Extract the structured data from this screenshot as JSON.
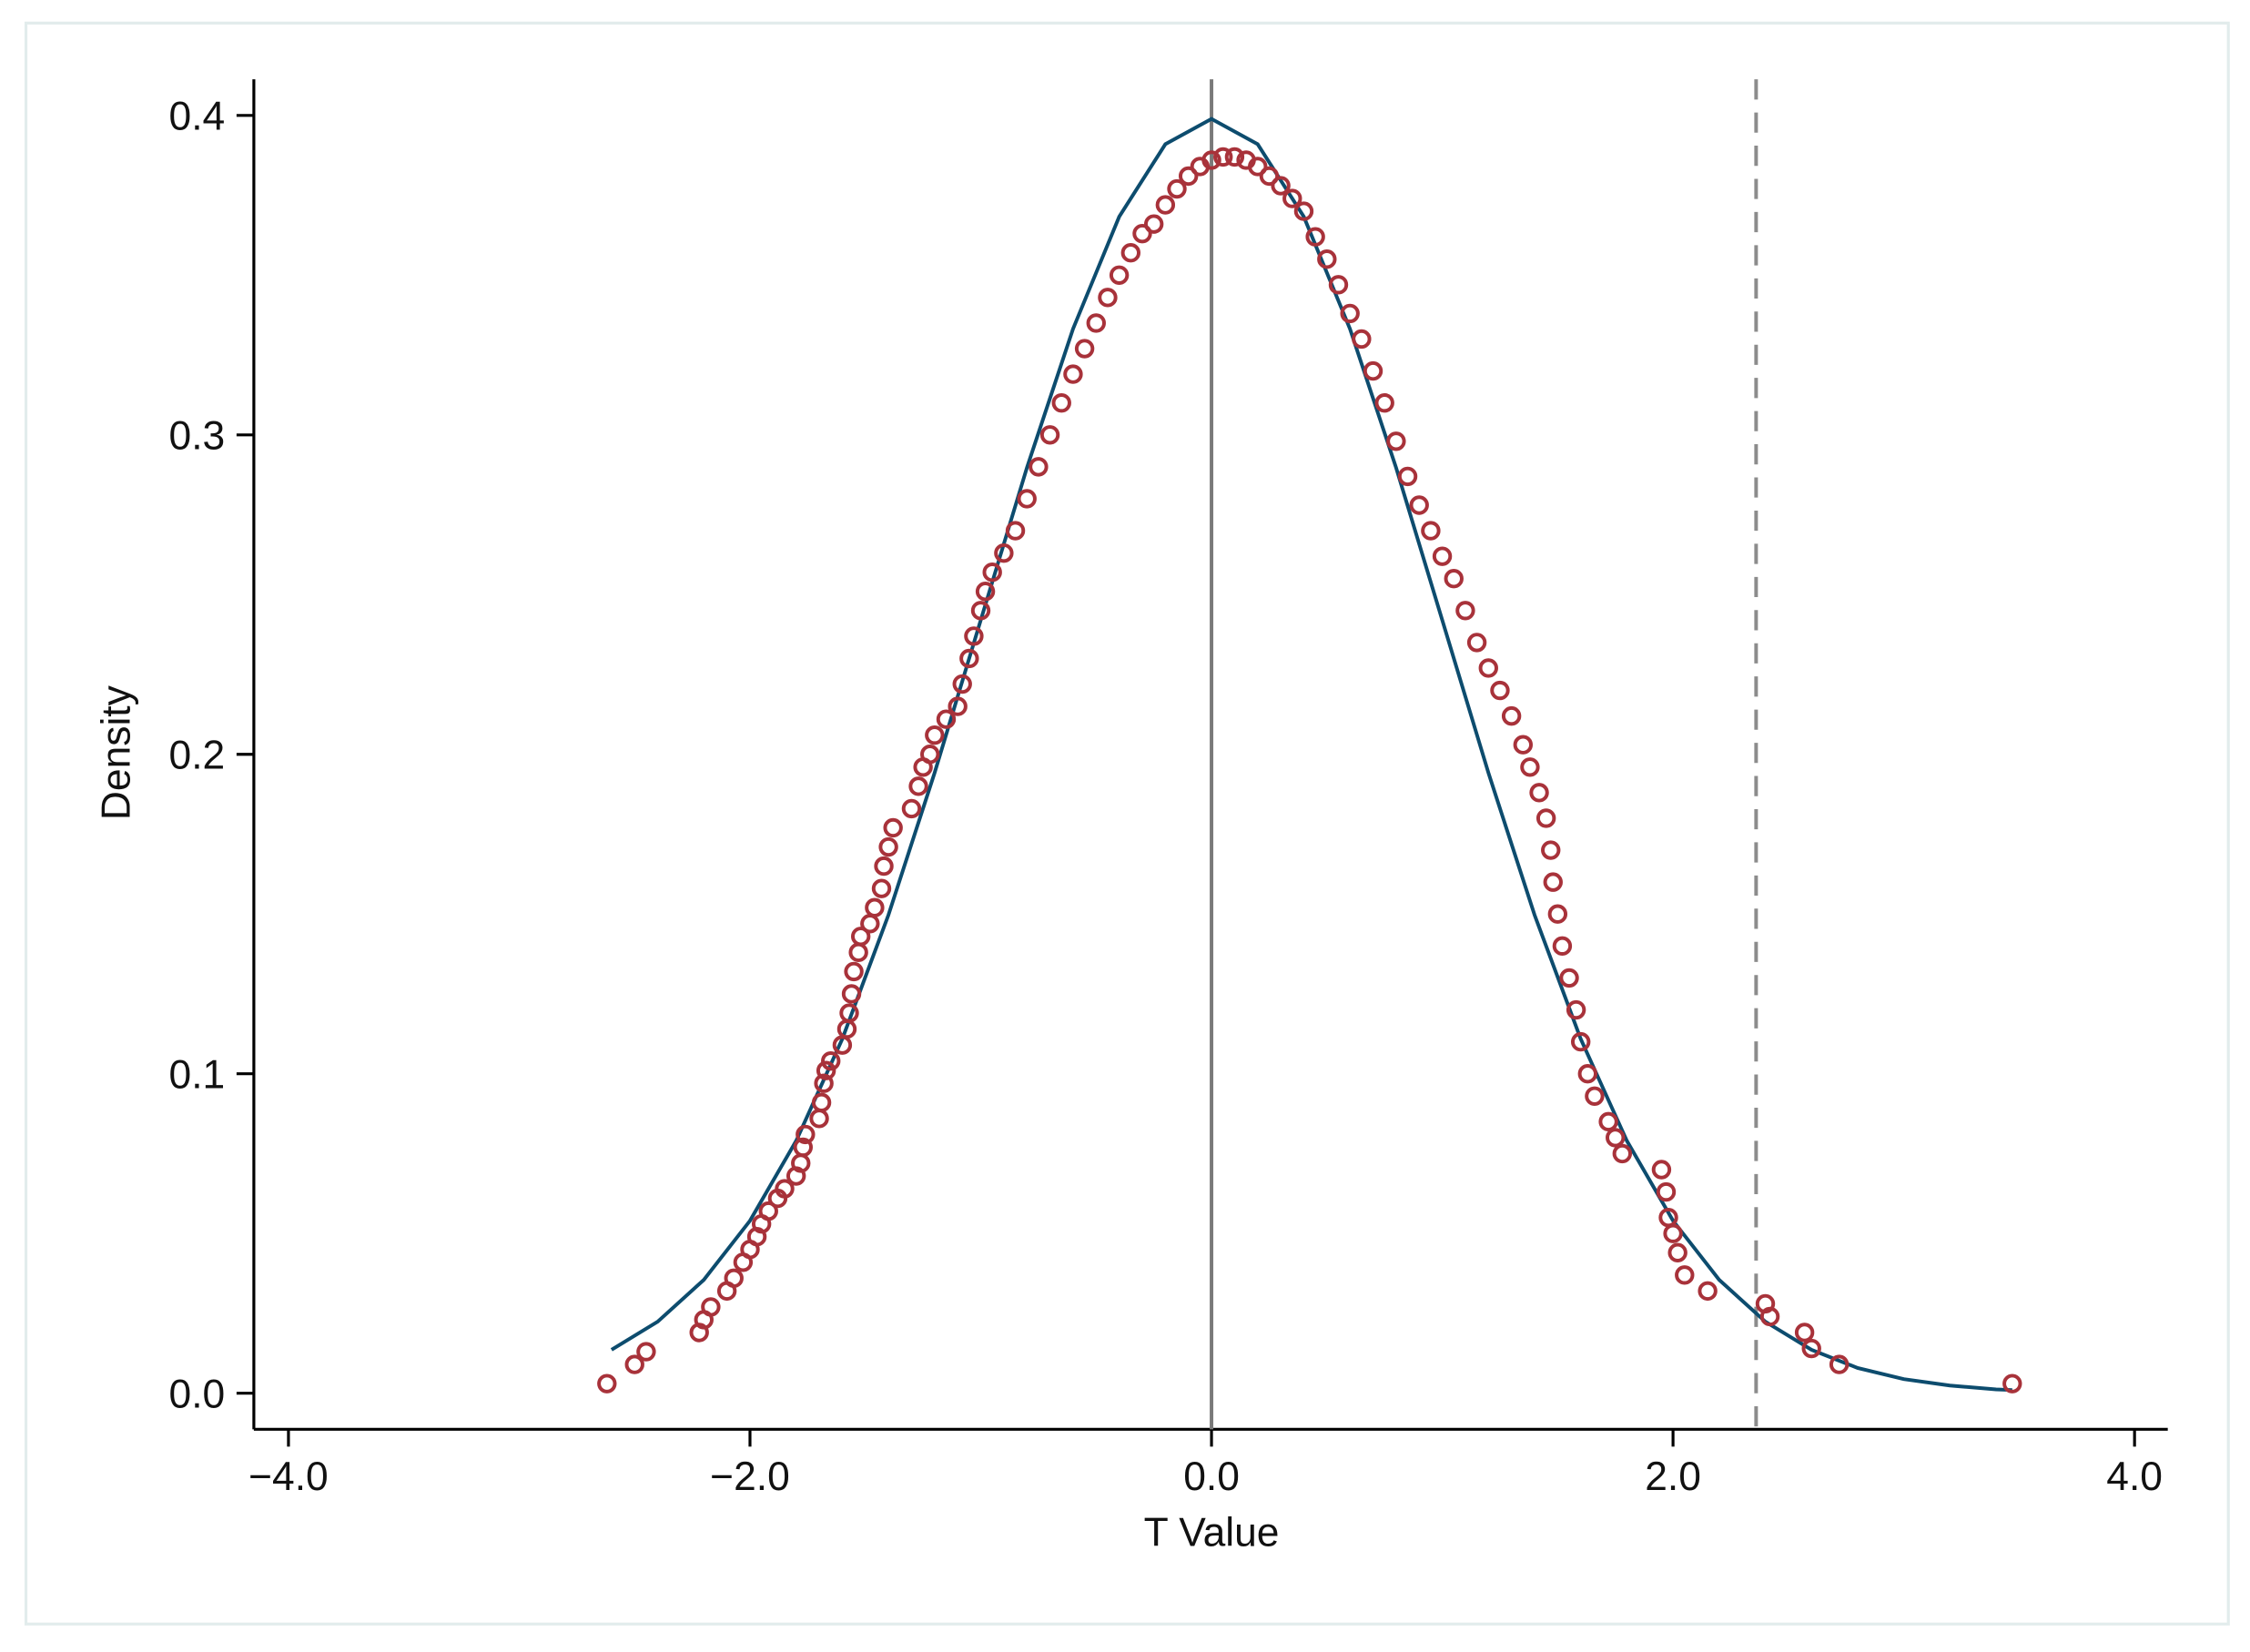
{
  "chart_data": {
    "type": "scatter",
    "xlabel": "T Value",
    "ylabel": "Density",
    "xlim": [
      -4.15,
      4.144
    ],
    "ylim": [
      -0.0113,
      0.4113
    ],
    "xticks": [
      {
        "value": -4,
        "label": "−4.0"
      },
      {
        "value": -2,
        "label": "−2.0"
      },
      {
        "value": 0,
        "label": "0.0"
      },
      {
        "value": 2,
        "label": "2.0"
      },
      {
        "value": 4,
        "label": "4.0"
      }
    ],
    "yticks": [
      {
        "value": 0,
        "label": "0.0"
      },
      {
        "value": 0.1,
        "label": "0.1"
      },
      {
        "value": 0.2,
        "label": "0.2"
      },
      {
        "value": 0.3,
        "label": "0.3"
      },
      {
        "value": 0.4,
        "label": "0.4"
      }
    ],
    "vlines": [
      {
        "x": 0,
        "color": "#7a7a7a",
        "dashed": false
      },
      {
        "x": 2.36,
        "color": "#8c8c8c",
        "dashed": true
      }
    ],
    "series": [
      {
        "mode": "markers",
        "color": "#a8323a",
        "x": [
          -2.62,
          -2.5,
          -2.45,
          -2.22,
          -2.2,
          -2.17,
          -2.1,
          -2.07,
          -2.03,
          -2.0,
          -1.97,
          -1.95,
          -1.92,
          -1.88,
          -1.85,
          -1.8,
          -1.78,
          -1.77,
          -1.76,
          -1.7,
          -1.69,
          -1.68,
          -1.67,
          -1.65,
          -1.6,
          -1.58,
          -1.57,
          -1.56,
          -1.55,
          -1.53,
          -1.52,
          -1.48,
          -1.46,
          -1.43,
          -1.42,
          -1.4,
          -1.38,
          -1.3,
          -1.27,
          -1.25,
          -1.22,
          -1.2,
          -1.15,
          -1.1,
          -1.08,
          -1.05,
          -1.03,
          -1.0,
          -0.98,
          -0.95,
          -0.9,
          -0.85,
          -0.8,
          -0.75,
          -0.7,
          -0.65,
          -0.6,
          -0.55,
          -0.5,
          -0.45,
          -0.4,
          -0.35,
          -0.3,
          -0.25,
          -0.2,
          -0.15,
          -0.1,
          -0.05,
          0,
          0.05,
          0.1,
          0.15,
          0.2,
          0.25,
          0.3,
          0.35,
          0.4,
          0.45,
          0.5,
          0.55,
          0.6,
          0.65,
          0.7,
          0.75,
          0.8,
          0.85,
          0.9,
          0.95,
          1.0,
          1.05,
          1.1,
          1.15,
          1.2,
          1.25,
          1.3,
          1.35,
          1.38,
          1.42,
          1.45,
          1.47,
          1.48,
          1.5,
          1.52,
          1.55,
          1.58,
          1.6,
          1.63,
          1.66,
          1.72,
          1.75,
          1.78,
          1.95,
          1.97,
          1.98,
          2.0,
          2.02,
          2.05,
          2.15,
          2.4,
          2.42,
          2.57,
          2.6,
          2.72,
          3.47
        ],
        "values": [
          0.003,
          0.009,
          0.013,
          0.019,
          0.023,
          0.027,
          0.032,
          0.036,
          0.041,
          0.045,
          0.049,
          0.053,
          0.057,
          0.061,
          0.064,
          0.068,
          0.072,
          0.077,
          0.081,
          0.086,
          0.091,
          0.097,
          0.101,
          0.104,
          0.109,
          0.114,
          0.119,
          0.125,
          0.132,
          0.138,
          0.143,
          0.147,
          0.152,
          0.158,
          0.165,
          0.171,
          0.177,
          0.183,
          0.19,
          0.196,
          0.2,
          0.206,
          0.211,
          0.215,
          0.222,
          0.23,
          0.237,
          0.245,
          0.251,
          0.257,
          0.263,
          0.27,
          0.28,
          0.29,
          0.3,
          0.31,
          0.319,
          0.327,
          0.335,
          0.343,
          0.35,
          0.357,
          0.363,
          0.366,
          0.372,
          0.377,
          0.381,
          0.384,
          0.386,
          0.387,
          0.387,
          0.386,
          0.384,
          0.381,
          0.378,
          0.374,
          0.37,
          0.362,
          0.355,
          0.347,
          0.338,
          0.33,
          0.32,
          0.31,
          0.298,
          0.287,
          0.278,
          0.27,
          0.262,
          0.255,
          0.245,
          0.235,
          0.227,
          0.22,
          0.212,
          0.203,
          0.196,
          0.188,
          0.18,
          0.17,
          0.16,
          0.15,
          0.14,
          0.13,
          0.12,
          0.11,
          0.1,
          0.093,
          0.085,
          0.08,
          0.075,
          0.07,
          0.063,
          0.055,
          0.05,
          0.044,
          0.037,
          0.032,
          0.028,
          0.024,
          0.019,
          0.014,
          0.009,
          0.003
        ]
      },
      {
        "mode": "line",
        "color": "#0d4c6e",
        "x": [
          -2.6,
          -2.4,
          -2.2,
          -2.0,
          -1.8,
          -1.6,
          -1.4,
          -1.2,
          -1.0,
          -0.8,
          -0.6,
          -0.4,
          -0.2,
          0,
          0.2,
          0.4,
          0.6,
          0.8,
          1.0,
          1.2,
          1.4,
          1.6,
          1.8,
          2.0,
          2.2,
          2.4,
          2.6,
          2.8,
          3.0,
          3.2,
          3.4,
          3.47
        ],
        "values": [
          0.0136,
          0.0224,
          0.0355,
          0.054,
          0.079,
          0.1109,
          0.1497,
          0.1942,
          0.242,
          0.2897,
          0.3332,
          0.3683,
          0.391,
          0.3989,
          0.391,
          0.3683,
          0.3332,
          0.2897,
          0.242,
          0.1942,
          0.1497,
          0.1109,
          0.079,
          0.054,
          0.0355,
          0.0224,
          0.0136,
          0.0079,
          0.0044,
          0.0024,
          0.0012,
          0.001
        ]
      }
    ]
  }
}
